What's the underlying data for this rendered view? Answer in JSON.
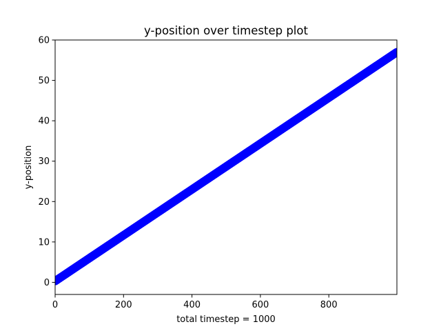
{
  "chart_data": {
    "type": "line",
    "title": "y-position over timestep plot",
    "xlabel": "total timestep = 1000",
    "ylabel": "y-position",
    "xlim": [
      0,
      999
    ],
    "ylim": [
      -3,
      60
    ],
    "x_ticks": [
      0,
      200,
      400,
      600,
      800
    ],
    "y_ticks": [
      0,
      10,
      20,
      30,
      40,
      50,
      60
    ],
    "grid": false,
    "series": [
      {
        "color": "#0000ff",
        "marker": "circle",
        "x": [
          0,
          999
        ],
        "y": [
          0.3,
          57.0
        ]
      }
    ]
  }
}
